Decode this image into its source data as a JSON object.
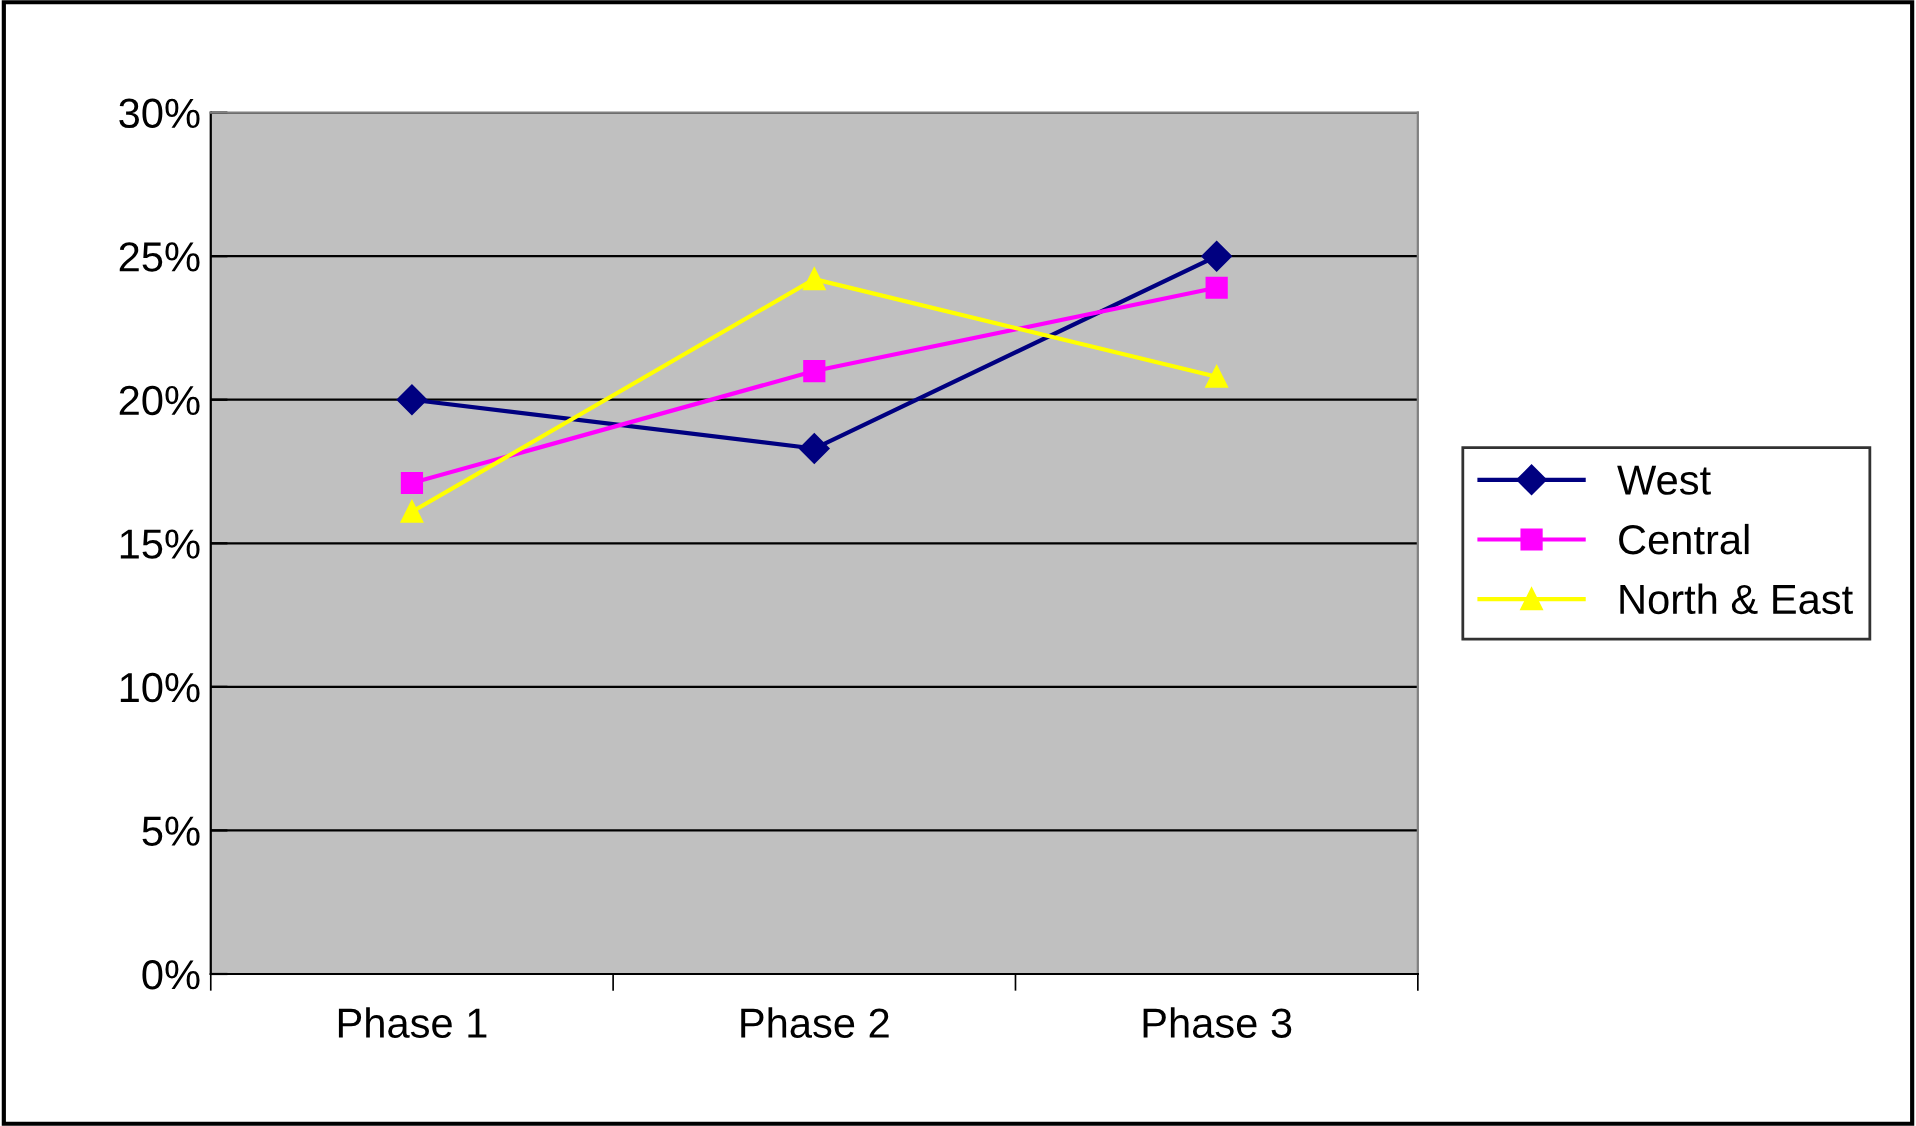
{
  "chart_data": {
    "type": "line",
    "categories": [
      "Phase 1",
      "Phase 2",
      "Phase 3"
    ],
    "series": [
      {
        "name": "West",
        "color": "#000080",
        "values": [
          20,
          18.3,
          25
        ],
        "marker": "diamond"
      },
      {
        "name": "Central",
        "color": "#ff00ff",
        "values": [
          17.1,
          21.0,
          23.9
        ],
        "marker": "square"
      },
      {
        "name": "North & East",
        "color": "#ffff00",
        "values": [
          16.1,
          24.2,
          20.8
        ],
        "marker": "triangle"
      }
    ],
    "ylim": [
      0,
      30
    ],
    "yticks": [
      {
        "value": 0,
        "label": "0%"
      },
      {
        "value": 5,
        "label": "5%"
      },
      {
        "value": 10,
        "label": "10%"
      },
      {
        "value": 15,
        "label": "15%"
      },
      {
        "value": 20,
        "label": "20%"
      },
      {
        "value": 25,
        "label": "25%"
      },
      {
        "value": 30,
        "label": "30%"
      }
    ],
    "grid": "y",
    "legend": "right",
    "line_style": "solid"
  }
}
